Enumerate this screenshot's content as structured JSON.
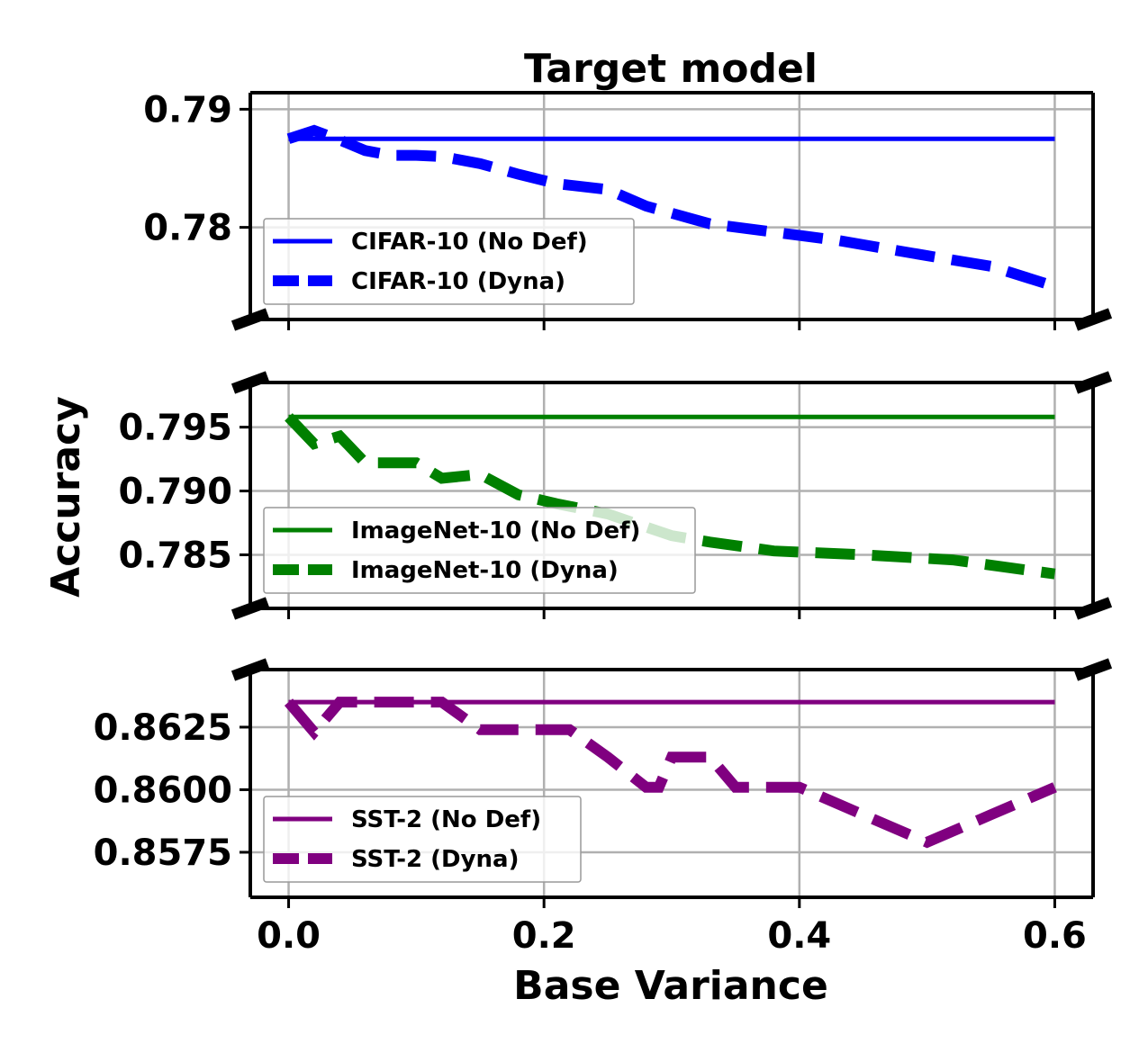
{
  "chart_data": {
    "type": "line",
    "title": "Target model",
    "xlabel": "Base Variance",
    "ylabel": "Accuracy",
    "xlim": [
      -0.03,
      0.63
    ],
    "x_ticks": [
      0.0,
      0.2,
      0.4,
      0.6
    ],
    "x_tick_labels": [
      "0.0",
      "0.2",
      "0.4",
      "0.6"
    ],
    "grid": true,
    "panels": [
      {
        "ylim": [
          0.7722,
          0.7914
        ],
        "y_ticks": [
          0.78,
          0.79
        ],
        "y_tick_labels": [
          "0.78",
          "0.79"
        ],
        "legend_position": "lower-left",
        "series": [
          {
            "name": "CIFAR-10 (No Def)",
            "style": "solid",
            "color": "#0000ff",
            "x": [
              0.0,
              0.6
            ],
            "y": [
              0.7875,
              0.7875
            ]
          },
          {
            "name": "CIFAR-10 (Dyna)",
            "style": "dashed",
            "color": "#0000ff",
            "x": [
              0.0,
              0.02,
              0.04,
              0.06,
              0.08,
              0.1,
              0.12,
              0.15,
              0.18,
              0.21,
              0.25,
              0.28,
              0.33,
              0.38,
              0.43,
              0.5,
              0.55,
              0.6
            ],
            "y": [
              0.7875,
              0.7882,
              0.7874,
              0.7865,
              0.7861,
              0.7861,
              0.786,
              0.7854,
              0.7845,
              0.7837,
              0.7832,
              0.7818,
              0.7803,
              0.7796,
              0.7789,
              0.7776,
              0.7767,
              0.775
            ]
          }
        ]
      },
      {
        "ylim": [
          0.7808,
          0.7985
        ],
        "y_ticks": [
          0.785,
          0.79,
          0.795
        ],
        "y_tick_labels": [
          "0.785",
          "0.790",
          "0.795"
        ],
        "legend_position": "lower-left",
        "series": [
          {
            "name": "ImageNet-10 (No Def)",
            "style": "solid",
            "color": "#008000",
            "x": [
              0.0,
              0.6
            ],
            "y": [
              0.7958,
              0.7958
            ]
          },
          {
            "name": "ImageNet-10 (Dyna)",
            "style": "dashed",
            "color": "#008000",
            "x": [
              0.0,
              0.02,
              0.04,
              0.06,
              0.08,
              0.1,
              0.12,
              0.15,
              0.18,
              0.21,
              0.25,
              0.3,
              0.33,
              0.38,
              0.45,
              0.52,
              0.6
            ],
            "y": [
              0.7958,
              0.7937,
              0.7943,
              0.7922,
              0.7922,
              0.7922,
              0.791,
              0.7913,
              0.7897,
              0.789,
              0.7882,
              0.7865,
              0.786,
              0.7853,
              0.785,
              0.7846,
              0.7835
            ]
          }
        ]
      },
      {
        "ylim": [
          0.8557,
          0.8648
        ],
        "y_ticks": [
          0.8575,
          0.86,
          0.8625
        ],
        "y_tick_labels": [
          "0.8575",
          "0.8600",
          "0.8625"
        ],
        "legend_position": "lower-left",
        "series": [
          {
            "name": "SST-2 (No Def)",
            "style": "solid",
            "color": "#800080",
            "x": [
              0.0,
              0.6
            ],
            "y": [
              0.8635,
              0.8635
            ]
          },
          {
            "name": "SST-2 (Dyna)",
            "style": "dashed",
            "color": "#800080",
            "x": [
              0.0,
              0.02,
              0.04,
              0.08,
              0.12,
              0.15,
              0.18,
              0.22,
              0.25,
              0.28,
              0.29,
              0.3,
              0.33,
              0.35,
              0.4,
              0.45,
              0.5,
              0.55,
              0.6
            ],
            "y": [
              0.8635,
              0.8623,
              0.8635,
              0.8635,
              0.8635,
              0.8624,
              0.8624,
              0.8624,
              0.8613,
              0.8601,
              0.8601,
              0.8613,
              0.8613,
              0.8601,
              0.8601,
              0.859,
              0.8579,
              0.859,
              0.8601
            ]
          }
        ]
      }
    ]
  }
}
